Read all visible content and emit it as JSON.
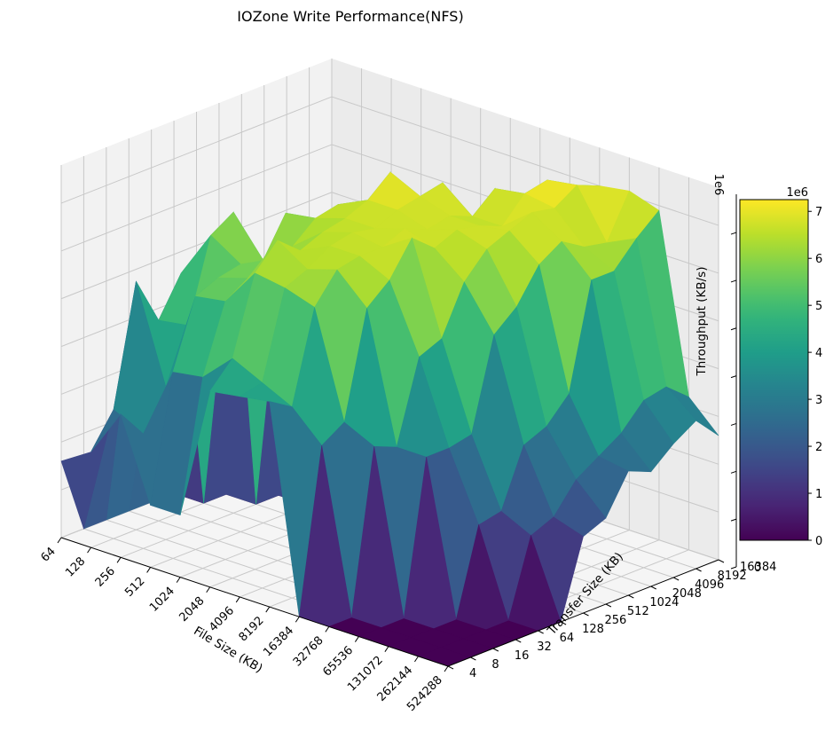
{
  "chart_data": {
    "type": "surface3d",
    "title": "IOZone Write Performance(NFS)",
    "xlabel": "File Size (KB)",
    "ylabel": "Transfer Size (KB)",
    "zlabel": "Throughput (KB/s)",
    "z_multiplier_label": "1e6",
    "colorbar_multiplier_label": "1e6",
    "colormap": "viridis",
    "x_ticks": [
      "64",
      "128",
      "256",
      "512",
      "1024",
      "2048",
      "4096",
      "8192",
      "16384",
      "32768",
      "65536",
      "131072",
      "262144",
      "524288"
    ],
    "y_ticks": [
      "4",
      "8",
      "16",
      "32",
      "64",
      "128",
      "256",
      "512",
      "1024",
      "2048",
      "4096",
      "8192",
      "16384"
    ],
    "z_ticks": [
      "0",
      "1",
      "2",
      "3",
      "4",
      "5",
      "6",
      "7"
    ],
    "colorbar_ticks": [
      "0",
      "1",
      "2",
      "3",
      "4",
      "5",
      "6",
      "7"
    ],
    "zlim": [
      0,
      7.8
    ],
    "clim": [
      0,
      7.25
    ],
    "z_values_1e6": [
      [
        1.6,
        0,
        0,
        0,
        0,
        0,
        0,
        0,
        0,
        0,
        0,
        0,
        0
      ],
      [
        2.0,
        2.7,
        5.2,
        4.2,
        5.0,
        0,
        0,
        0,
        0,
        0,
        0,
        0,
        0
      ],
      [
        3.0,
        2.4,
        3.2,
        4.3,
        6.0,
        6.3,
        0,
        0,
        0,
        0,
        0,
        0,
        0
      ],
      [
        1.3,
        3.9,
        5.3,
        5.5,
        5.6,
        5.5,
        6.3,
        0,
        0,
        0,
        0,
        0,
        0
      ],
      [
        1.3,
        4.0,
        5.4,
        5.7,
        5.9,
        6.0,
        6.4,
        6.5,
        0,
        0,
        0,
        0,
        0
      ],
      [
        4.1,
        4.6,
        6.2,
        6.7,
        6.3,
        6.5,
        6.6,
        6.8,
        7.2,
        0,
        0,
        0,
        0
      ],
      [
        4.2,
        4.3,
        6.1,
        6.3,
        6.6,
        6.7,
        6.6,
        6.8,
        6.9,
        7.0,
        0,
        0,
        0
      ],
      [
        4.3,
        4.0,
        5.9,
        6.5,
        6.6,
        6.6,
        6.8,
        6.6,
        6.7,
        6.5,
        6.9,
        0,
        0
      ],
      [
        0,
        3.4,
        3.7,
        5.9,
        6.3,
        7.0,
        6.6,
        6.8,
        6.7,
        6.5,
        7.0,
        7.1,
        0
      ],
      [
        0,
        0,
        3.4,
        3.2,
        4.9,
        5.1,
        6.1,
        6.6,
        6.8,
        7.0,
        6.9,
        7.2,
        7.0
      ],
      [
        0,
        0,
        0,
        3.2,
        3.2,
        3.3,
        5.2,
        5.6,
        6.3,
        6.6,
        6.3,
        6.2,
        7.1
      ],
      [
        0,
        0,
        0,
        0,
        1.8,
        1.9,
        3.1,
        3.3,
        3.8,
        6.0,
        6.0,
        6.5,
        6.9
      ],
      [
        0,
        0,
        0,
        0,
        0,
        1.6,
        1.8,
        2.4,
        2.7,
        3.0,
        3.5,
        3.6,
        3.2
      ],
      [
        0,
        0,
        0,
        0,
        0,
        0,
        1.6,
        1.8,
        2.6,
        2.4,
        2.8,
        3.1,
        2.6
      ]
    ]
  }
}
